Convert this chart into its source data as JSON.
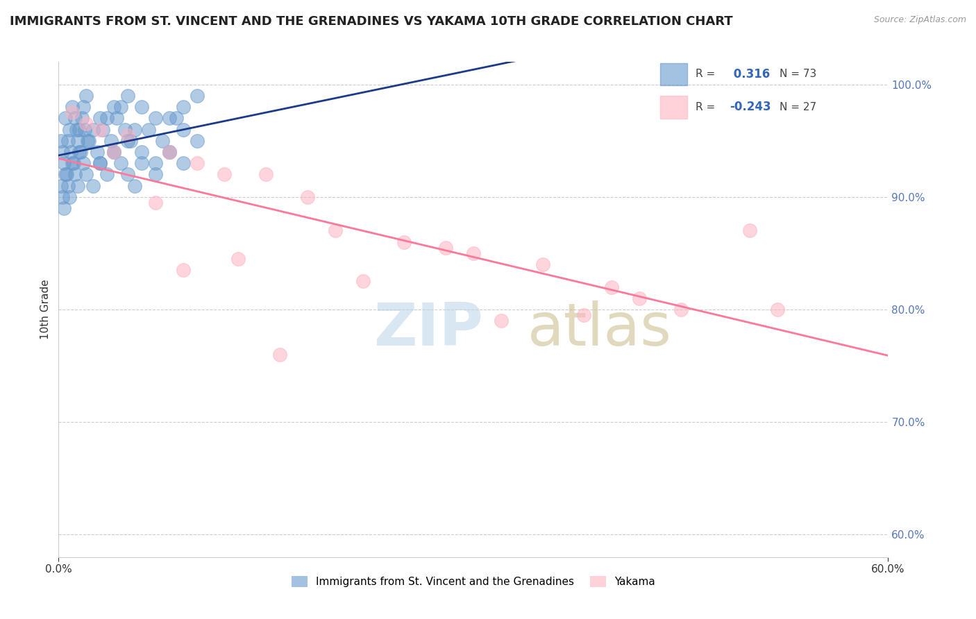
{
  "title": "IMMIGRANTS FROM ST. VINCENT AND THE GRENADINES VS YAKAMA 10TH GRADE CORRELATION CHART",
  "source": "Source: ZipAtlas.com",
  "ylabel": "10th Grade",
  "ytick_labels": [
    "60.0%",
    "70.0%",
    "80.0%",
    "90.0%",
    "100.0%"
  ],
  "ytick_values": [
    0.6,
    0.7,
    0.8,
    0.9,
    1.0
  ],
  "blue_R": 0.316,
  "blue_N": 73,
  "pink_R": -0.243,
  "pink_N": 27,
  "blue_color": "#6699CC",
  "pink_color": "#FFB3C1",
  "blue_line_color": "#1a3a8a",
  "pink_line_color": "#FF7799",
  "legend_label_blue": "Immigrants from St. Vincent and the Grenadines",
  "legend_label_pink": "Yakama",
  "blue_scatter_x": [
    0.0005,
    0.001,
    0.0015,
    0.002,
    0.003,
    0.004,
    0.005,
    0.006,
    0.008,
    0.01,
    0.0002,
    0.0008,
    0.0012,
    0.0018,
    0.0025,
    0.0035,
    0.0045,
    0.0055,
    0.007,
    0.009,
    0.0003,
    0.0007,
    0.0013,
    0.0017,
    0.0022,
    0.0032,
    0.0042,
    0.0052,
    0.0065,
    0.0085,
    0.0004,
    0.0009,
    0.0014,
    0.0019,
    0.0028,
    0.0038,
    0.0048,
    0.006,
    0.0075,
    0.009,
    0.0006,
    0.0011,
    0.0016,
    0.0021,
    0.003,
    0.004,
    0.005,
    0.007,
    0.008,
    0.01,
    0.0002,
    0.0005,
    0.001,
    0.0015,
    0.002,
    0.003,
    0.004,
    0.005,
    0.006,
    0.008,
    0.0003,
    0.0007,
    0.0012,
    0.0018,
    0.0025,
    0.0035,
    0.0045,
    0.0055,
    0.007,
    0.009,
    0.0004,
    0.0008,
    0.0014
  ],
  "blue_scatter_y": [
    0.97,
    0.98,
    0.96,
    0.99,
    0.97,
    0.98,
    0.99,
    0.98,
    0.97,
    0.99,
    0.95,
    0.96,
    0.97,
    0.98,
    0.96,
    0.97,
    0.98,
    0.96,
    0.97,
    0.98,
    0.94,
    0.95,
    0.96,
    0.97,
    0.95,
    0.96,
    0.97,
    0.95,
    0.96,
    0.97,
    0.93,
    0.94,
    0.95,
    0.96,
    0.94,
    0.95,
    0.96,
    0.94,
    0.95,
    0.96,
    0.92,
    0.93,
    0.94,
    0.95,
    0.93,
    0.94,
    0.95,
    0.93,
    0.94,
    0.95,
    0.91,
    0.92,
    0.93,
    0.94,
    0.92,
    0.93,
    0.94,
    0.92,
    0.93,
    0.94,
    0.9,
    0.91,
    0.92,
    0.93,
    0.91,
    0.92,
    0.93,
    0.91,
    0.92,
    0.93,
    0.89,
    0.9,
    0.91
  ],
  "pink_scatter_x": [
    0.001,
    0.003,
    0.005,
    0.008,
    0.01,
    0.012,
    0.015,
    0.018,
    0.02,
    0.025,
    0.028,
    0.03,
    0.035,
    0.04,
    0.042,
    0.045,
    0.05,
    0.052,
    0.002,
    0.007,
    0.013,
    0.022,
    0.032,
    0.038,
    0.004,
    0.009,
    0.016
  ],
  "pink_scatter_y": [
    0.975,
    0.96,
    0.955,
    0.94,
    0.93,
    0.92,
    0.92,
    0.9,
    0.87,
    0.86,
    0.855,
    0.85,
    0.84,
    0.82,
    0.81,
    0.8,
    0.87,
    0.8,
    0.965,
    0.895,
    0.845,
    0.825,
    0.79,
    0.795,
    0.94,
    0.835,
    0.76
  ],
  "xlim": [
    0.0,
    0.06
  ],
  "ylim": [
    0.58,
    1.02
  ]
}
